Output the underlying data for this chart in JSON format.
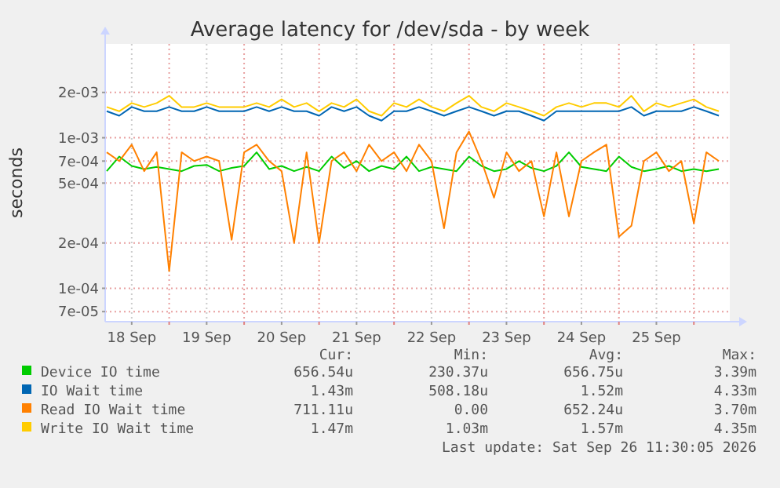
{
  "chart_data": {
    "type": "line",
    "title": "Average latency for /dev/sda - by week",
    "ylabel": "seconds",
    "log": "y",
    "grid": true,
    "legend": "bottom",
    "line_style": "solid",
    "marker": "none",
    "xlim": [
      "2026-09-18T03:30",
      "2026-09-26T11:30"
    ],
    "xticks": [
      {
        "value": "2026-09-18T12:00",
        "label": "18 Sep"
      },
      {
        "value": "2026-09-19T00:00",
        "label": null
      },
      {
        "value": "2026-09-19T12:00",
        "label": "19 Sep"
      },
      {
        "value": "2026-09-20T00:00",
        "label": null
      },
      {
        "value": "2026-09-20T12:00",
        "label": "20 Sep"
      },
      {
        "value": "2026-09-21T00:00",
        "label": null
      },
      {
        "value": "2026-09-21T12:00",
        "label": "21 Sep"
      },
      {
        "value": "2026-09-22T00:00",
        "label": null
      },
      {
        "value": "2026-09-22T12:00",
        "label": "22 Sep"
      },
      {
        "value": "2026-09-23T00:00",
        "label": null
      },
      {
        "value": "2026-09-23T12:00",
        "label": "23 Sep"
      },
      {
        "value": "2026-09-24T00:00",
        "label": null
      },
      {
        "value": "2026-09-24T12:00",
        "label": "24 Sep"
      },
      {
        "value": "2026-09-25T00:00",
        "label": null
      },
      {
        "value": "2026-09-25T12:00",
        "label": "25 Sep"
      },
      {
        "value": "2026-09-26T00:00",
        "label": null
      }
    ],
    "ylim": [
      6e-05,
      0.0042
    ],
    "yticks": [
      {
        "value": 7e-05,
        "label": "7e-05"
      },
      {
        "value": 0.0001,
        "label": "1e-04"
      },
      {
        "value": 0.0002,
        "label": "2e-04"
      },
      {
        "value": 0.0005,
        "label": "5e-04"
      },
      {
        "value": 0.0007,
        "label": "7e-04"
      },
      {
        "value": 0.001,
        "label": "1e-03"
      },
      {
        "value": 0.002,
        "label": "2e-03"
      }
    ],
    "x": [
      "2026-09-18T04:00",
      "2026-09-18T08:00",
      "2026-09-18T12:00",
      "2026-09-18T16:00",
      "2026-09-18T20:00",
      "2026-09-19T00:00",
      "2026-09-19T04:00",
      "2026-09-19T08:00",
      "2026-09-19T12:00",
      "2026-09-19T16:00",
      "2026-09-19T20:00",
      "2026-09-20T00:00",
      "2026-09-20T04:00",
      "2026-09-20T08:00",
      "2026-09-20T12:00",
      "2026-09-20T16:00",
      "2026-09-20T20:00",
      "2026-09-21T00:00",
      "2026-09-21T04:00",
      "2026-09-21T08:00",
      "2026-09-21T12:00",
      "2026-09-21T16:00",
      "2026-09-21T20:00",
      "2026-09-22T00:00",
      "2026-09-22T04:00",
      "2026-09-22T08:00",
      "2026-09-22T12:00",
      "2026-09-22T16:00",
      "2026-09-22T20:00",
      "2026-09-23T00:00",
      "2026-09-23T04:00",
      "2026-09-23T08:00",
      "2026-09-23T12:00",
      "2026-09-23T16:00",
      "2026-09-23T20:00",
      "2026-09-24T00:00",
      "2026-09-24T04:00",
      "2026-09-24T08:00",
      "2026-09-24T12:00",
      "2026-09-24T16:00",
      "2026-09-24T20:00",
      "2026-09-25T00:00",
      "2026-09-25T04:00",
      "2026-09-25T08:00",
      "2026-09-25T12:00",
      "2026-09-25T16:00",
      "2026-09-25T20:00",
      "2026-09-26T00:00",
      "2026-09-26T04:00",
      "2026-09-26T08:00"
    ],
    "series": [
      {
        "name": "Device IO time",
        "color": "#00cc00",
        "values": [
          0.0006,
          0.00075,
          0.00065,
          0.00062,
          0.00064,
          0.00062,
          0.0006,
          0.00065,
          0.00066,
          0.0006,
          0.00063,
          0.00065,
          0.0008,
          0.00062,
          0.00065,
          0.0006,
          0.00064,
          0.0006,
          0.00075,
          0.00063,
          0.0007,
          0.0006,
          0.00065,
          0.00062,
          0.00075,
          0.0006,
          0.00064,
          0.00062,
          0.0006,
          0.00075,
          0.00065,
          0.0006,
          0.00062,
          0.0007,
          0.00063,
          0.0006,
          0.00065,
          0.0008,
          0.00064,
          0.00062,
          0.0006,
          0.00075,
          0.00064,
          0.0006,
          0.00062,
          0.00065,
          0.0006,
          0.00062,
          0.0006,
          0.00062
        ]
      },
      {
        "name": "IO Wait time",
        "color": "#0066b3",
        "values": [
          0.0015,
          0.0014,
          0.0016,
          0.0015,
          0.0015,
          0.0016,
          0.0015,
          0.0015,
          0.0016,
          0.0015,
          0.0015,
          0.0015,
          0.0016,
          0.0015,
          0.0016,
          0.0015,
          0.0015,
          0.0014,
          0.0016,
          0.0015,
          0.0016,
          0.0014,
          0.0013,
          0.0015,
          0.0015,
          0.0016,
          0.0015,
          0.0014,
          0.0015,
          0.0016,
          0.0015,
          0.0014,
          0.0015,
          0.0015,
          0.0014,
          0.0013,
          0.0015,
          0.0015,
          0.0015,
          0.0015,
          0.0015,
          0.0015,
          0.0016,
          0.0014,
          0.0015,
          0.0015,
          0.0015,
          0.0016,
          0.0015,
          0.0014
        ]
      },
      {
        "name": "Read IO Wait time",
        "color": "#ff8000",
        "values": [
          0.0008,
          0.0007,
          0.0009,
          0.0006,
          0.0008,
          0.00013,
          0.0008,
          0.0007,
          0.00075,
          0.0007,
          0.00021,
          0.0008,
          0.0009,
          0.0007,
          0.0006,
          0.0002,
          0.0008,
          0.0002,
          0.0007,
          0.0008,
          0.0006,
          0.0009,
          0.0007,
          0.0008,
          0.0006,
          0.0009,
          0.0007,
          0.00025,
          0.0008,
          0.0011,
          0.0007,
          0.0004,
          0.0008,
          0.0006,
          0.0007,
          0.0003,
          0.0008,
          0.0003,
          0.0007,
          0.0008,
          0.0009,
          0.00022,
          0.00026,
          0.0007,
          0.0008,
          0.0006,
          0.0007,
          0.00027,
          0.0008,
          0.0007
        ]
      },
      {
        "name": "Write IO Wait time",
        "color": "#ffcc00",
        "values": [
          0.0016,
          0.0015,
          0.0017,
          0.0016,
          0.0017,
          0.0019,
          0.0016,
          0.0016,
          0.0017,
          0.0016,
          0.0016,
          0.0016,
          0.0017,
          0.0016,
          0.0018,
          0.0016,
          0.0017,
          0.0015,
          0.0017,
          0.0016,
          0.0018,
          0.0015,
          0.0014,
          0.0017,
          0.0016,
          0.0018,
          0.0016,
          0.0015,
          0.0017,
          0.0019,
          0.0016,
          0.0015,
          0.0017,
          0.0016,
          0.0015,
          0.0014,
          0.0016,
          0.0017,
          0.0016,
          0.0017,
          0.0017,
          0.0016,
          0.0019,
          0.0015,
          0.0017,
          0.0016,
          0.0017,
          0.0018,
          0.0016,
          0.0015
        ]
      }
    ],
    "annotations": [
      "Cur:",
      "Min:",
      "Avg:",
      "Max:",
      "656.54u",
      "230.37u",
      "656.75u",
      "3.39m",
      "1.43m",
      "508.18u",
      "1.52m",
      "4.33m",
      "711.11u",
      "0.00",
      "652.24u",
      "3.70m",
      "1.47m",
      "1.03m",
      "1.57m",
      "4.35m",
      "Last update: Sat Sep 26 11:30:05 2026"
    ]
  }
}
